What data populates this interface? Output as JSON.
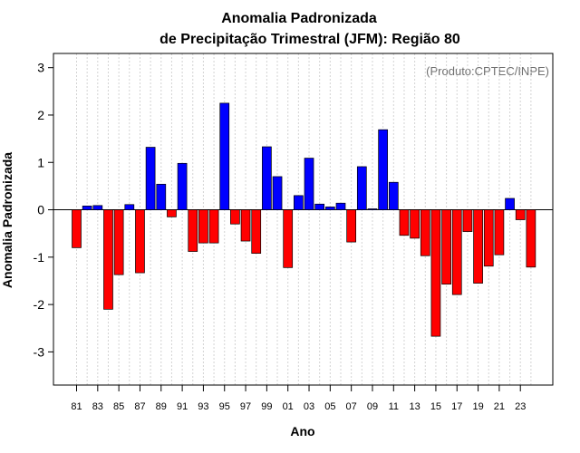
{
  "chart_data": {
    "type": "bar",
    "title": "Anomalia Padronizada",
    "subtitle": "de Precipitação Trimestral (JFM): Região 80",
    "xlabel": "Ano",
    "ylabel": "Anomalia Padronizada",
    "credit": "(Produto:CPTEC/INPE)",
    "ylim": [
      -3.7,
      3.3
    ],
    "yticks": [
      -3,
      -2,
      -1,
      0,
      1,
      2,
      3
    ],
    "ytick_labels": [
      "-3",
      "-2",
      "-1",
      "0",
      "1",
      "2",
      "3"
    ],
    "categories": [
      "81",
      "82",
      "83",
      "84",
      "85",
      "86",
      "87",
      "88",
      "89",
      "90",
      "91",
      "92",
      "93",
      "94",
      "95",
      "96",
      "97",
      "98",
      "99",
      "00",
      "01",
      "02",
      "03",
      "04",
      "05",
      "06",
      "07",
      "08",
      "09",
      "10",
      "11",
      "12",
      "13",
      "14",
      "15",
      "16",
      "17",
      "18",
      "19",
      "20",
      "21",
      "22",
      "23",
      "24"
    ],
    "xtick_labels": [
      "81",
      "83",
      "85",
      "87",
      "89",
      "91",
      "93",
      "95",
      "97",
      "99",
      "01",
      "03",
      "05",
      "07",
      "09",
      "11",
      "13",
      "15",
      "17",
      "19",
      "21",
      "23"
    ],
    "values": [
      -0.8,
      0.08,
      0.09,
      -2.1,
      -1.37,
      0.11,
      -1.33,
      1.32,
      0.54,
      -0.15,
      0.98,
      -0.88,
      -0.7,
      -0.7,
      2.25,
      -0.3,
      -0.66,
      -0.92,
      1.33,
      0.7,
      -1.22,
      0.3,
      1.09,
      0.12,
      0.06,
      0.14,
      -0.68,
      0.91,
      0.02,
      1.69,
      0.58,
      -0.54,
      -0.6,
      -0.97,
      -2.67,
      -1.57,
      -1.79,
      -0.46,
      -1.55,
      -1.19,
      -0.95,
      0.24,
      -0.21,
      -1.21
    ],
    "positive_color": "#0000ff",
    "negative_color": "#ff0000",
    "grid": true
  }
}
